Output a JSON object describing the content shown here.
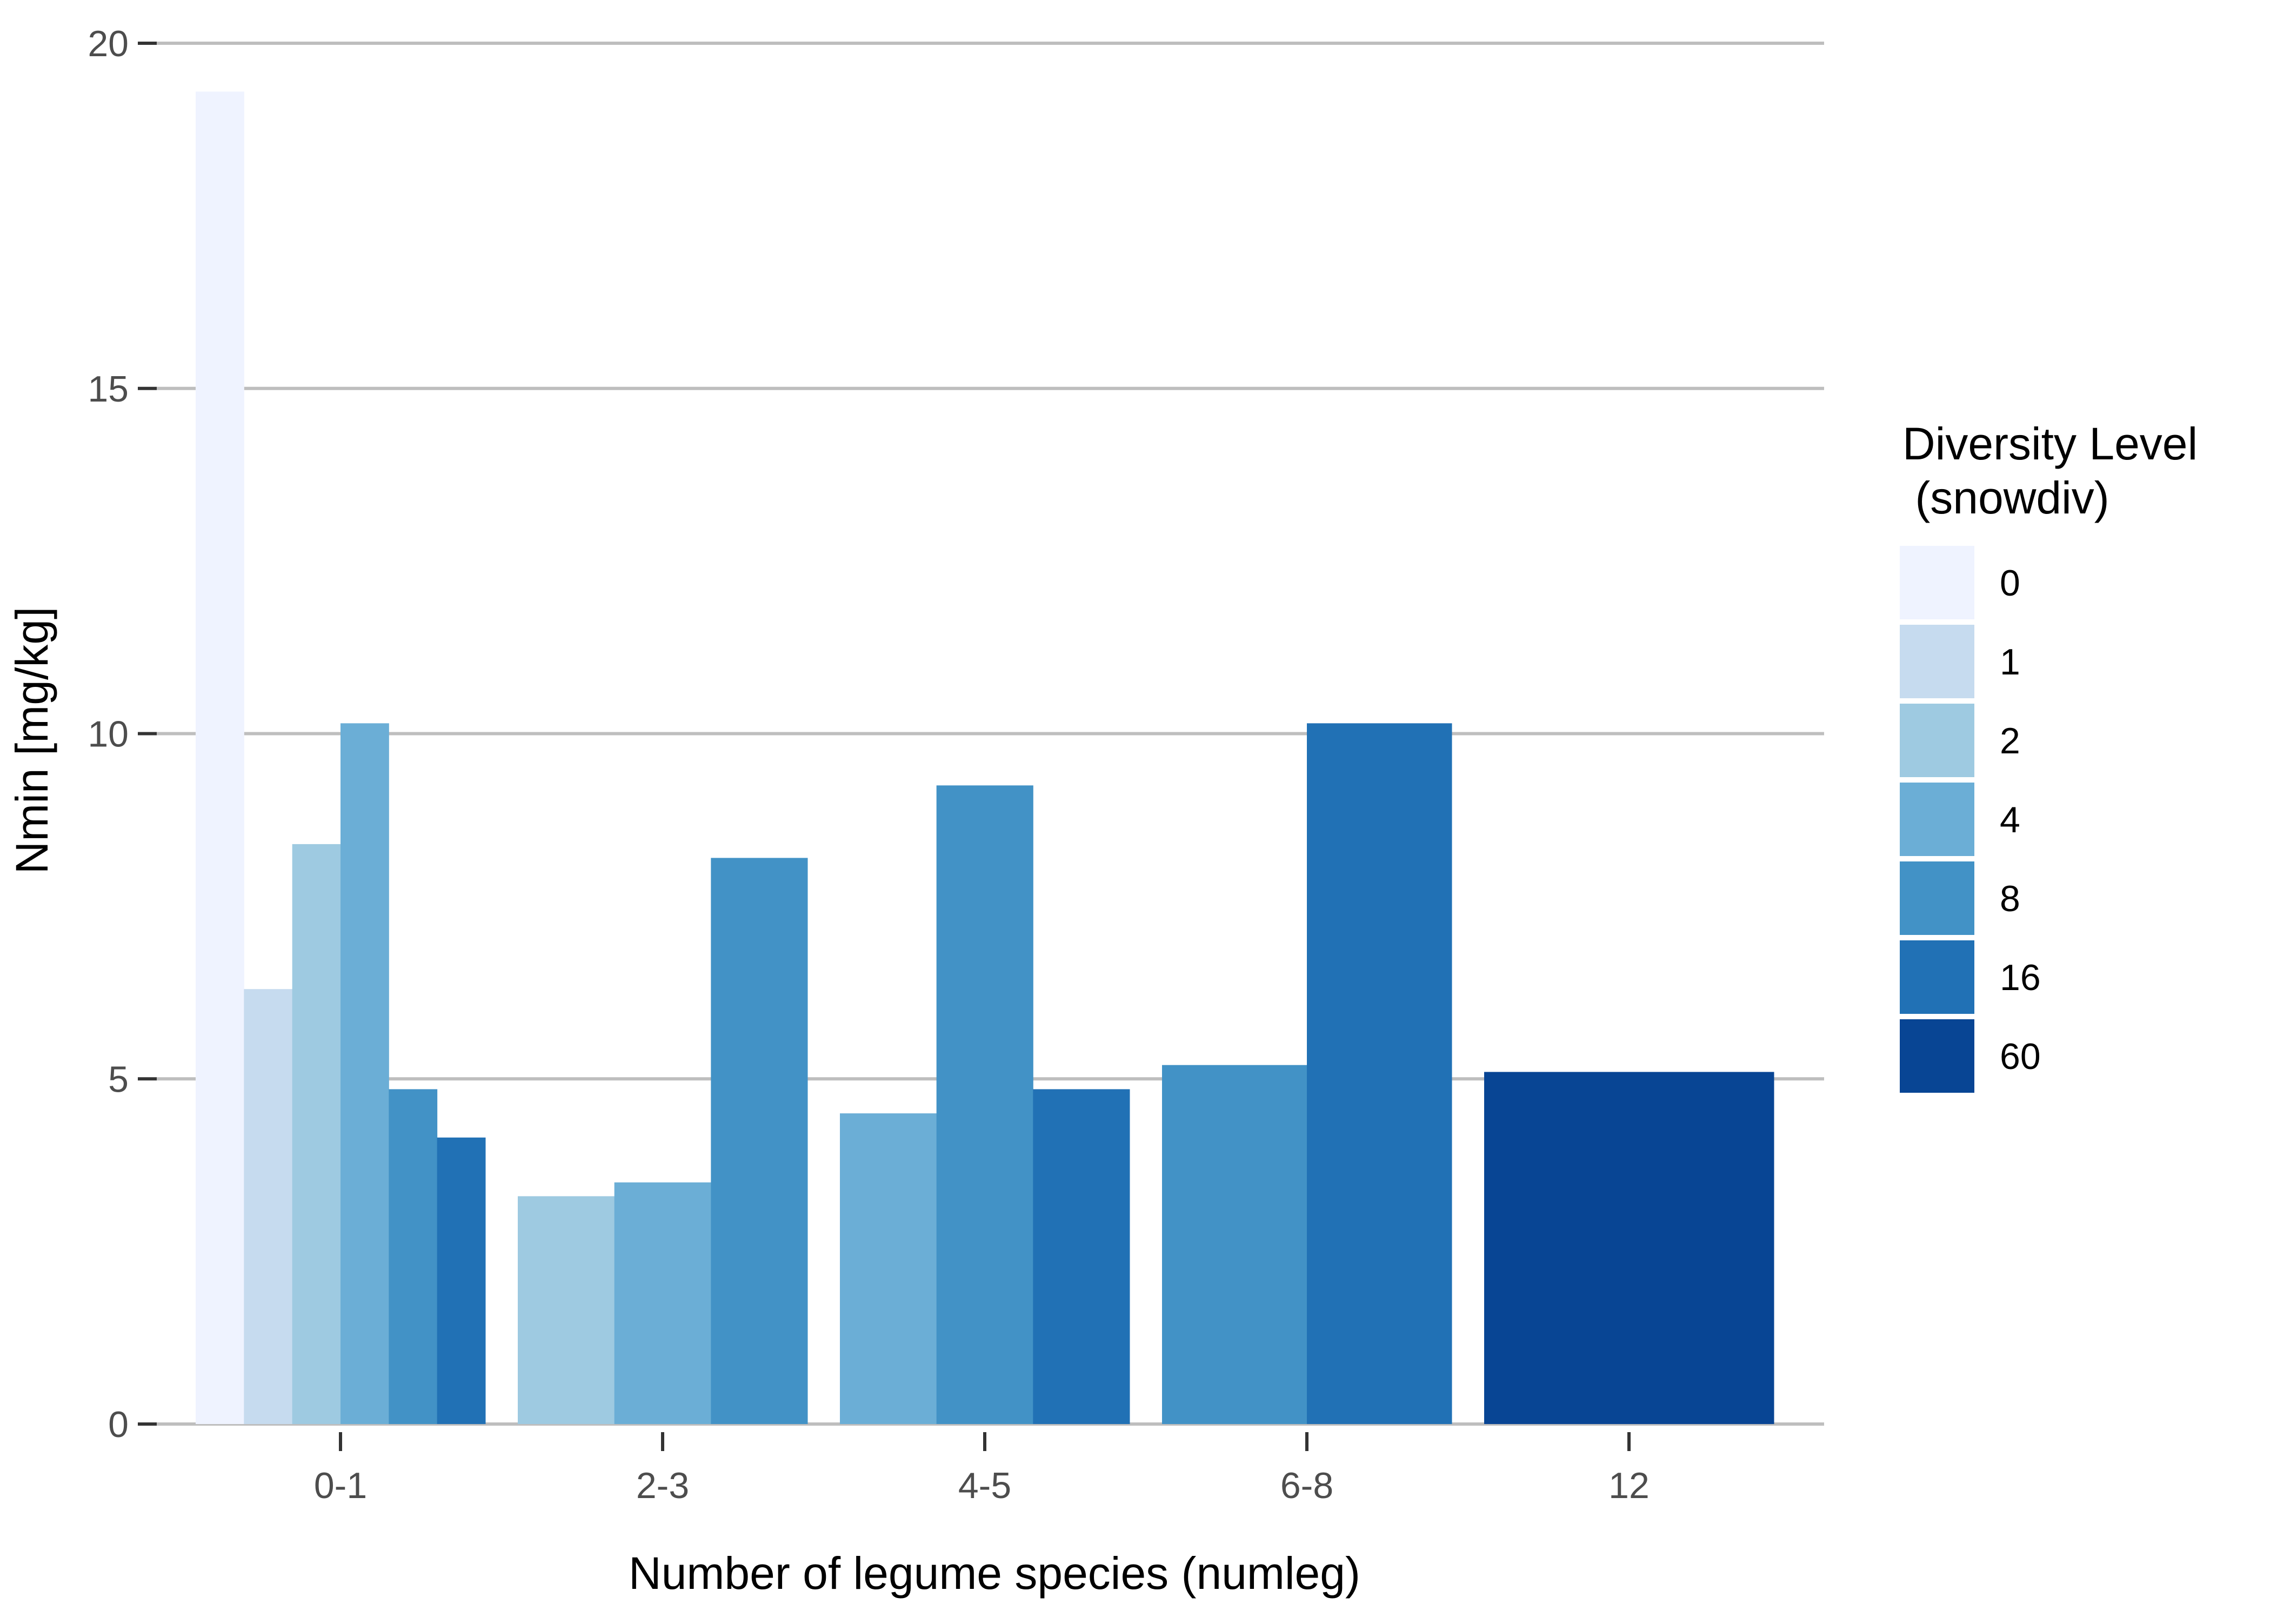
{
  "chart_data": {
    "type": "bar",
    "title": "",
    "xlabel": "Number of legume species (numleg)",
    "ylabel": "Nmin [mg/kg]",
    "ylim": [
      0,
      20
    ],
    "yticks": [
      0,
      5,
      10,
      15,
      20
    ],
    "grid": "horizontal major",
    "categories": [
      "0-1",
      "2-3",
      "4-5",
      "6-8",
      "12"
    ],
    "legend": {
      "title_line1": "Diversity Level",
      "title_line2": " (snowdiv)",
      "placement": "right",
      "levels": [
        "0",
        "1",
        "2",
        "4",
        "8",
        "16",
        "60"
      ]
    },
    "colors": {
      "0": "#EFF3FF",
      "1": "#C6DBEF",
      "2": "#9ECAE1",
      "4": "#6BAED6",
      "8": "#4292C6",
      "16": "#2171B5",
      "60": "#084594"
    },
    "bars": [
      {
        "category": "0-1",
        "level": "0",
        "value": 19.3
      },
      {
        "category": "0-1",
        "level": "1",
        "value": 6.3
      },
      {
        "category": "0-1",
        "level": "2",
        "value": 8.4
      },
      {
        "category": "0-1",
        "level": "4",
        "value": 10.15
      },
      {
        "category": "0-1",
        "level": "8",
        "value": 4.85
      },
      {
        "category": "0-1",
        "level": "16",
        "value": 4.15
      },
      {
        "category": "2-3",
        "level": "2",
        "value": 3.3
      },
      {
        "category": "2-3",
        "level": "4",
        "value": 3.5
      },
      {
        "category": "2-3",
        "level": "8",
        "value": 8.2
      },
      {
        "category": "4-5",
        "level": "4",
        "value": 4.5
      },
      {
        "category": "4-5",
        "level": "8",
        "value": 9.25
      },
      {
        "category": "4-5",
        "level": "16",
        "value": 4.85
      },
      {
        "category": "6-8",
        "level": "8",
        "value": 5.2
      },
      {
        "category": "6-8",
        "level": "16",
        "value": 10.15
      },
      {
        "category": "12",
        "level": "60",
        "value": 5.1
      }
    ]
  }
}
